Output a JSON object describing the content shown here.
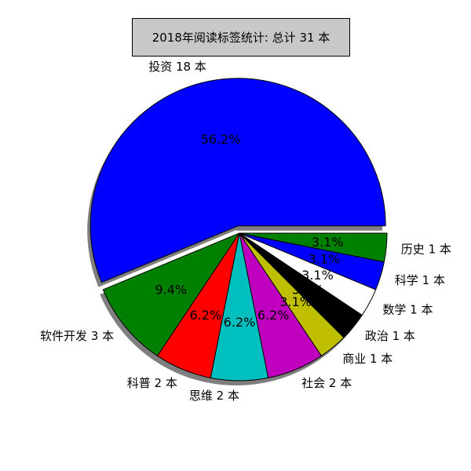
{
  "chart_data": {
    "type": "pie",
    "title": "2018年阅读标签统计: 总计 31 本",
    "start_angle_deg": 0,
    "direction": "counterclockwise",
    "shadow": true,
    "slices": [
      {
        "label": "投资 18 本",
        "value": 18,
        "pct_label": "56.2%",
        "color": "#0000ff",
        "explode": 0.05
      },
      {
        "label": "软件开发 3 本",
        "value": 3,
        "pct_label": "9.4%",
        "color": "#008000",
        "explode": 0
      },
      {
        "label": "科普 2 本",
        "value": 2,
        "pct_label": "6.2%",
        "color": "#ff0000",
        "explode": 0
      },
      {
        "label": "思维 2 本",
        "value": 2,
        "pct_label": "6.2%",
        "color": "#00bfbf",
        "explode": 0
      },
      {
        "label": "社会 2 本",
        "value": 2,
        "pct_label": "6.2%",
        "color": "#bf00bf",
        "explode": 0
      },
      {
        "label": "商业 1 本",
        "value": 1,
        "pct_label": "3.1%",
        "color": "#bfbf00",
        "explode": 0
      },
      {
        "label": "政治 1 本",
        "value": 1,
        "pct_label": "3.1%",
        "color": "#000000",
        "explode": 0
      },
      {
        "label": "数学 1 本",
        "value": 1,
        "pct_label": "3.1%",
        "color": "#ffffff",
        "explode": 0
      },
      {
        "label": "科学 1 本",
        "value": 1,
        "pct_label": "3.1%",
        "color": "#0000ff",
        "explode": 0
      },
      {
        "label": "历史 1 本",
        "value": 1,
        "pct_label": "3.1%",
        "color": "#008000",
        "explode": 0
      }
    ]
  }
}
